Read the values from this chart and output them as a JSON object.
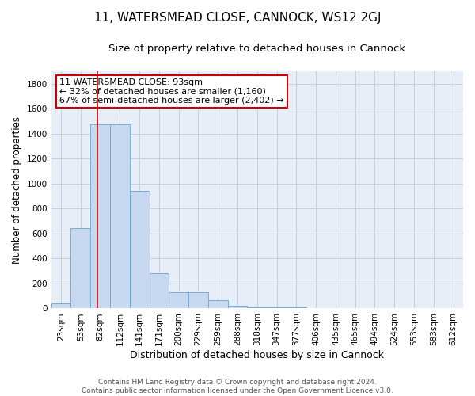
{
  "title": "11, WATERSMEAD CLOSE, CANNOCK, WS12 2GJ",
  "subtitle": "Size of property relative to detached houses in Cannock",
  "xlabel": "Distribution of detached houses by size in Cannock",
  "ylabel": "Number of detached properties",
  "categories": [
    "23sqm",
    "53sqm",
    "82sqm",
    "112sqm",
    "141sqm",
    "171sqm",
    "200sqm",
    "229sqm",
    "259sqm",
    "288sqm",
    "318sqm",
    "347sqm",
    "377sqm",
    "406sqm",
    "435sqm",
    "465sqm",
    "494sqm",
    "524sqm",
    "553sqm",
    "583sqm",
    "612sqm"
  ],
  "values": [
    40,
    645,
    1475,
    1475,
    940,
    285,
    130,
    130,
    65,
    25,
    10,
    10,
    10,
    0,
    0,
    0,
    0,
    0,
    0,
    0,
    0
  ],
  "bar_color": "#c6d9f0",
  "bar_edge_color": "#7aadd4",
  "vline_bin": 2,
  "vline_color": "#cc0000",
  "annotation_text": "11 WATERSMEAD CLOSE: 93sqm\n← 32% of detached houses are smaller (1,160)\n67% of semi-detached houses are larger (2,402) →",
  "annotation_box_facecolor": "#ffffff",
  "annotation_box_edgecolor": "#cc0000",
  "grid_color": "#c8d0dc",
  "background_color": "#e8eef8",
  "ylim": [
    0,
    1900
  ],
  "yticks": [
    0,
    200,
    400,
    600,
    800,
    1000,
    1200,
    1400,
    1600,
    1800
  ],
  "footer_text": "Contains HM Land Registry data © Crown copyright and database right 2024.\nContains public sector information licensed under the Open Government Licence v3.0.",
  "title_fontsize": 11,
  "subtitle_fontsize": 9.5,
  "xlabel_fontsize": 9,
  "ylabel_fontsize": 8.5,
  "tick_fontsize": 7.5,
  "annotation_fontsize": 8,
  "footer_fontsize": 6.5
}
